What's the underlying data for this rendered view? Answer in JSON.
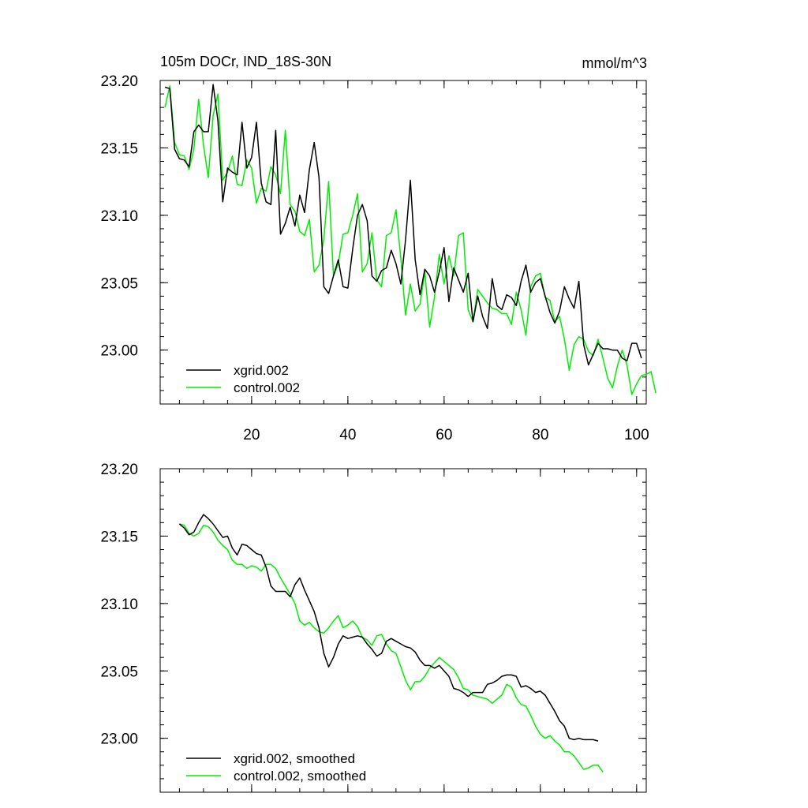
{
  "chart_data": [
    {
      "type": "line",
      "title": "105m DOCr, IND_18S-30N",
      "units": "mmol/m^3",
      "xlim": [
        1,
        102
      ],
      "ylim": [
        22.96,
        23.2
      ],
      "xticks": [
        20,
        40,
        60,
        80,
        100
      ],
      "xtick_labels": [
        "20",
        "40",
        "60",
        "80",
        "100"
      ],
      "yticks": [
        23.0,
        23.05,
        23.1,
        23.15,
        23.2
      ],
      "ytick_labels": [
        "23.00",
        "23.05",
        "23.10",
        "23.15",
        "23.20"
      ],
      "grid": false,
      "legend_position": "bottom-left",
      "series": [
        {
          "name": "xgrid.002",
          "color": "#000000",
          "x_start": 2,
          "values": [
            23.195,
            23.194,
            23.149,
            23.142,
            23.141,
            23.136,
            23.162,
            23.167,
            23.162,
            23.162,
            23.197,
            23.17,
            23.11,
            23.135,
            23.132,
            23.13,
            23.169,
            23.135,
            23.143,
            23.169,
            23.124,
            23.11,
            23.108,
            23.163,
            23.086,
            23.094,
            23.106,
            23.092,
            23.115,
            23.102,
            23.134,
            23.154,
            23.128,
            23.047,
            23.042,
            23.055,
            23.067,
            23.047,
            23.046,
            23.075,
            23.1,
            23.108,
            23.096,
            23.055,
            23.051,
            23.059,
            23.061,
            23.074,
            23.064,
            23.049,
            23.082,
            23.126,
            23.067,
            23.041,
            23.06,
            23.055,
            23.043,
            23.058,
            23.076,
            23.036,
            23.061,
            23.052,
            23.043,
            23.057,
            23.021,
            23.04,
            23.025,
            23.016,
            23.053,
            23.033,
            23.03,
            23.041,
            23.039,
            23.033,
            23.051,
            23.063,
            23.043,
            23.05,
            23.053,
            23.04,
            23.028,
            23.02,
            23.029,
            23.047,
            23.038,
            23.031,
            23.051,
            23.004,
            22.989,
            22.997,
            23.005,
            23.001,
            23.001,
            23.0,
            23.0,
            22.994,
            22.992,
            23.005,
            23.005,
            22.994
          ]
        },
        {
          "name": "control.002",
          "color": "#00ee00",
          "x_start": 2,
          "values": [
            23.18,
            23.196,
            23.154,
            23.145,
            23.144,
            23.134,
            23.149,
            23.186,
            23.152,
            23.128,
            23.174,
            23.19,
            23.126,
            23.132,
            23.144,
            23.123,
            23.122,
            23.141,
            23.135,
            23.109,
            23.12,
            23.118,
            23.136,
            23.13,
            23.116,
            23.163,
            23.108,
            23.103,
            23.088,
            23.085,
            23.097,
            23.058,
            23.063,
            23.082,
            23.125,
            23.055,
            23.064,
            23.086,
            23.087,
            23.1,
            23.116,
            23.058,
            23.064,
            23.087,
            23.052,
            23.047,
            23.085,
            23.087,
            23.104,
            23.068,
            23.026,
            23.049,
            23.029,
            23.034,
            23.058,
            23.017,
            23.039,
            23.071,
            23.049,
            23.07,
            23.055,
            23.085,
            23.087,
            23.03,
            23.021,
            23.045,
            23.04,
            23.035,
            23.031,
            23.03,
            23.027,
            23.027,
            23.019,
            23.043,
            23.03,
            23.011,
            23.047,
            23.055,
            23.057,
            23.039,
            23.037,
            23.021,
            23.025,
            23.008,
            22.985,
            23.004,
            23.01,
            23.008,
            22.999,
            22.996,
            23.008,
            22.994,
            22.979,
            22.972,
            22.988,
            23.0,
            22.989,
            22.967,
            22.975,
            22.981,
            22.982,
            22.984,
            22.968
          ]
        }
      ]
    },
    {
      "type": "line",
      "xlim": [
        1,
        102
      ],
      "ylim": [
        22.96,
        23.2
      ],
      "xticks": [
        20,
        40,
        60,
        80,
        100
      ],
      "xtick_labels": [],
      "yticks": [
        23.0,
        23.05,
        23.1,
        23.15,
        23.2
      ],
      "ytick_labels": [
        "23.00",
        "23.05",
        "23.10",
        "23.15",
        "23.20"
      ],
      "grid": false,
      "legend_position": "bottom-left",
      "series": [
        {
          "name": "xgrid.002, smoothed",
          "color": "#000000",
          "x_start": 5,
          "values": [
            23.159,
            23.156,
            23.151,
            23.153,
            23.16,
            23.166,
            23.163,
            23.159,
            23.154,
            23.149,
            23.15,
            23.141,
            23.136,
            23.144,
            23.143,
            23.14,
            23.137,
            23.136,
            23.127,
            23.113,
            23.109,
            23.109,
            23.109,
            23.105,
            23.114,
            23.119,
            23.11,
            23.102,
            23.094,
            23.082,
            23.063,
            23.053,
            23.06,
            23.07,
            23.076,
            23.074,
            23.075,
            23.076,
            23.075,
            23.07,
            23.066,
            23.061,
            23.063,
            23.072,
            23.074,
            23.072,
            23.07,
            23.068,
            23.067,
            23.064,
            23.058,
            23.054,
            23.054,
            23.052,
            23.054,
            23.05,
            23.046,
            23.037,
            23.036,
            23.034,
            23.031,
            23.034,
            23.034,
            23.034,
            23.04,
            23.041,
            23.043,
            23.046,
            23.047,
            23.047,
            23.046,
            23.038,
            23.039,
            23.037,
            23.034,
            23.035,
            23.032,
            23.026,
            23.02,
            23.013,
            23.009,
            23.0,
            22.999,
            23.0,
            22.999,
            22.999,
            22.999,
            22.998
          ]
        },
        {
          "name": "control.002, smoothed",
          "color": "#00ee00",
          "x_start": 5,
          "values": [
            23.159,
            23.158,
            23.152,
            23.15,
            23.152,
            23.158,
            23.157,
            23.153,
            23.147,
            23.143,
            23.14,
            23.132,
            23.129,
            23.129,
            23.126,
            23.128,
            23.127,
            23.124,
            23.129,
            23.129,
            23.126,
            23.119,
            23.113,
            23.107,
            23.1,
            23.087,
            23.084,
            23.086,
            23.082,
            23.079,
            23.078,
            23.082,
            23.087,
            23.091,
            23.082,
            23.084,
            23.087,
            23.083,
            23.075,
            23.073,
            23.069,
            23.076,
            23.077,
            23.07,
            23.065,
            23.063,
            23.053,
            23.043,
            23.036,
            23.042,
            23.042,
            23.046,
            23.052,
            23.056,
            23.06,
            23.057,
            23.054,
            23.051,
            23.045,
            23.037,
            23.036,
            23.032,
            23.031,
            23.03,
            23.029,
            23.026,
            23.029,
            23.032,
            23.04,
            23.038,
            23.03,
            23.025,
            23.024,
            23.017,
            23.009,
            23.003,
            23.0,
            23.002,
            22.998,
            22.995,
            22.99,
            22.99,
            22.987,
            22.982,
            22.977,
            22.978,
            22.98,
            22.98,
            22.975
          ]
        }
      ]
    }
  ]
}
